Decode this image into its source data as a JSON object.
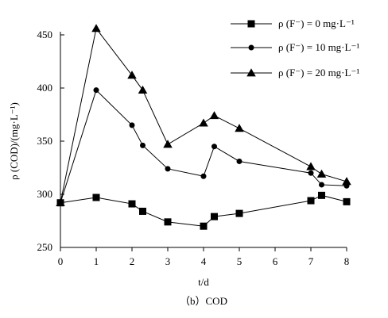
{
  "chart_data": {
    "type": "line",
    "x": [
      0,
      1,
      2,
      2.3,
      3,
      4,
      4.3,
      5,
      7,
      7.3,
      8
    ],
    "series": [
      {
        "name": "ρ (F⁻) = 0 mg·L⁻¹",
        "marker": "square",
        "values": [
          292,
          297,
          291,
          284,
          274,
          270,
          279,
          282,
          294,
          299,
          293
        ]
      },
      {
        "name": "ρ (F⁻) = 10 mg·L⁻¹",
        "marker": "circle",
        "values": [
          292,
          398,
          365,
          346,
          324,
          317,
          345,
          331,
          320,
          309,
          308
        ]
      },
      {
        "name": "ρ (F⁻) = 20 mg·L⁻¹",
        "marker": "triangle",
        "values": [
          292,
          456,
          412,
          398,
          347,
          367,
          374,
          362,
          326,
          319,
          312
        ]
      }
    ],
    "xlabel": "t/d",
    "ylabel": "ρ (COD)/(mg·L⁻¹)",
    "xlim": [
      0,
      8
    ],
    "ylim": [
      250,
      450
    ],
    "x_ticks": [
      "0",
      "1",
      "2",
      "3",
      "4",
      "5",
      "6",
      "7",
      "8"
    ],
    "y_ticks": [
      "250",
      "300",
      "350",
      "400",
      "450"
    ],
    "grid": false,
    "legend_position": "top-right",
    "caption": "（b）COD"
  }
}
